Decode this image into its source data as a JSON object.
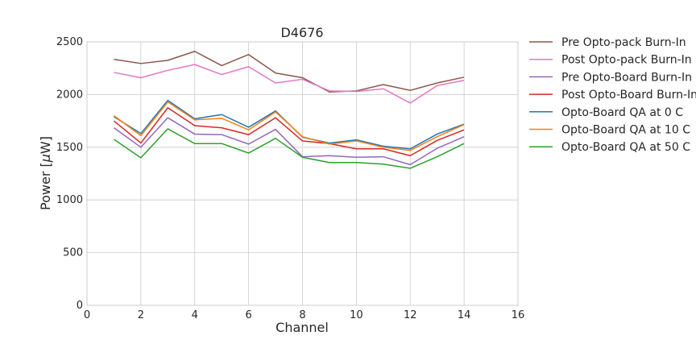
{
  "chart_data": {
    "type": "line",
    "title": "D4676",
    "xlabel": "Channel",
    "ylabel_prefix": "Power [",
    "ylabel_mu": "μ",
    "ylabel_suffix": "W]",
    "xlim": [
      0,
      16
    ],
    "ylim": [
      0,
      2500
    ],
    "xticks": [
      0,
      2,
      4,
      6,
      8,
      10,
      12,
      14,
      16
    ],
    "yticks": [
      0,
      500,
      1000,
      1500,
      2000,
      2500
    ],
    "grid": true,
    "legend_position": "outside-right",
    "x": [
      1,
      2,
      3,
      4,
      5,
      6,
      7,
      8,
      9,
      10,
      11,
      12,
      13,
      14
    ],
    "series": [
      {
        "name": "Pre Opto-pack Burn-In",
        "color": "#8c564b",
        "values": [
          2335,
          2295,
          2325,
          2410,
          2275,
          2380,
          2205,
          2160,
          2025,
          2035,
          2095,
          2040,
          2110,
          2165
        ]
      },
      {
        "name": "Post Opto-pack Burn-In",
        "color": "#e377c2",
        "values": [
          2210,
          2160,
          2230,
          2285,
          2190,
          2265,
          2110,
          2145,
          2035,
          2030,
          2055,
          1920,
          2085,
          2135
        ]
      },
      {
        "name": "Pre Opto-Board Burn-In",
        "color": "#9467bd",
        "values": [
          1685,
          1500,
          1780,
          1625,
          1620,
          1530,
          1670,
          1410,
          1420,
          1405,
          1410,
          1335,
          1490,
          1600
        ]
      },
      {
        "name": "Post Opto-Board Burn-In",
        "color": "#d62728",
        "values": [
          1750,
          1540,
          1875,
          1705,
          1685,
          1620,
          1780,
          1560,
          1535,
          1485,
          1485,
          1420,
          1565,
          1665
        ]
      },
      {
        "name": "Opto-Board QA at 0 C",
        "color": "#1f77b4",
        "values": [
          1790,
          1630,
          1945,
          1770,
          1810,
          1690,
          1845,
          1595,
          1540,
          1570,
          1510,
          1485,
          1625,
          1720
        ]
      },
      {
        "name": "Opto-Board QA at 10 C",
        "color": "#ff7f0e",
        "values": [
          1800,
          1610,
          1930,
          1760,
          1775,
          1665,
          1835,
          1600,
          1530,
          1560,
          1500,
          1470,
          1600,
          1715
        ]
      },
      {
        "name": "Opto-Board QA at 50 C",
        "color": "#2ca02c",
        "values": [
          1575,
          1400,
          1675,
          1535,
          1535,
          1445,
          1585,
          1405,
          1355,
          1355,
          1340,
          1300,
          1410,
          1535
        ]
      }
    ]
  }
}
